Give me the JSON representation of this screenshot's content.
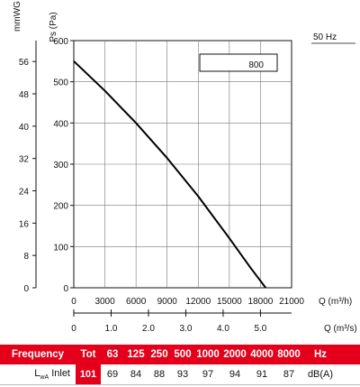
{
  "chart_data": {
    "type": "line",
    "frequency_label": "50 Hz",
    "model_label": "800",
    "y_left_label": "mmWG",
    "y_right_label": "Ps (Pa)",
    "y_pa_ticks": [
      0,
      100,
      200,
      300,
      400,
      500,
      600
    ],
    "y_mm_ticks": [
      0,
      8,
      16,
      24,
      32,
      40,
      48,
      56
    ],
    "x_q_m3h_label": "Q (m³/h)",
    "x_q_m3h_ticks": [
      0,
      3000,
      6000,
      9000,
      12000,
      15000,
      18000,
      21000
    ],
    "x_q_m3s_label": "Q (m³/s)",
    "x_q_m3s_ticks": [
      "0",
      "1.0",
      "2.0",
      "3.0",
      "4.0",
      "5.0"
    ],
    "xlim": [
      0,
      21000
    ],
    "ylim": [
      0,
      600
    ],
    "grid": true,
    "series": [
      {
        "x": [
          0,
          3000,
          6000,
          9000,
          12000,
          15000,
          17000,
          18500
        ],
        "y": [
          550,
          478,
          400,
          315,
          222,
          120,
          50,
          0
        ]
      }
    ]
  },
  "table": {
    "header": {
      "label": "Frequency",
      "tot": "Tot",
      "bands": [
        "63",
        "125",
        "250",
        "500",
        "1000",
        "2000",
        "4000",
        "8000"
      ],
      "unit": "Hz"
    },
    "row": {
      "label_main": "L",
      "label_sub": "wA",
      "label_rest": " Inlet",
      "tot": "101",
      "values": [
        "69",
        "84",
        "88",
        "93",
        "97",
        "94",
        "91",
        "87"
      ],
      "unit": "dB(A)"
    }
  }
}
